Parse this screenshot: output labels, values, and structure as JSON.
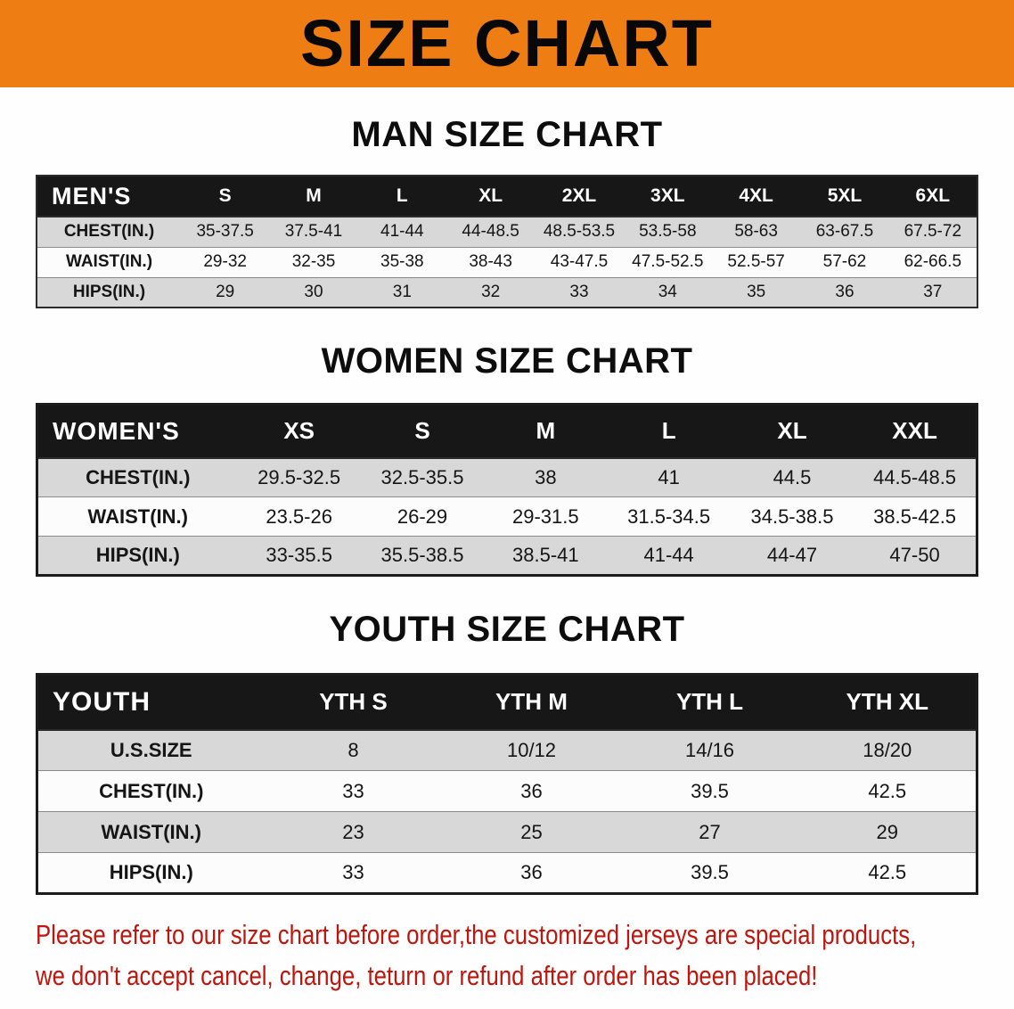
{
  "banner": {
    "title": "SIZE CHART"
  },
  "colors": {
    "banner_orange": "#ee7d13",
    "header_black": "#171717",
    "row_gray": "#d8d8d8",
    "disclaimer_red": "#c0140c"
  },
  "sections": [
    {
      "heading": "MAN SIZE CHART",
      "header_label": "MEN'S",
      "columns": [
        "S",
        "M",
        "L",
        "XL",
        "2XL",
        "3XL",
        "4XL",
        "5XL",
        "6XL"
      ],
      "rows": [
        {
          "label": "CHEST(IN.)",
          "values": [
            "35-37.5",
            "37.5-41",
            "41-44",
            "44-48.5",
            "48.5-53.5",
            "53.5-58",
            "58-63",
            "63-67.5",
            "67.5-72"
          ]
        },
        {
          "label": "WAIST(IN.)",
          "values": [
            "29-32",
            "32-35",
            "35-38",
            "38-43",
            "43-47.5",
            "47.5-52.5",
            "52.5-57",
            "57-62",
            "62-66.5"
          ]
        },
        {
          "label": "HIPS(IN.)",
          "values": [
            "29",
            "30",
            "31",
            "32",
            "33",
            "34",
            "35",
            "36",
            "37"
          ]
        }
      ]
    },
    {
      "heading": "WOMEN SIZE CHART",
      "header_label": "WOMEN'S",
      "columns": [
        "XS",
        "S",
        "M",
        "L",
        "XL",
        "XXL"
      ],
      "rows": [
        {
          "label": "CHEST(IN.)",
          "values": [
            "29.5-32.5",
            "32.5-35.5",
            "38",
            "41",
            "44.5",
            "44.5-48.5"
          ]
        },
        {
          "label": "WAIST(IN.)",
          "values": [
            "23.5-26",
            "26-29",
            "29-31.5",
            "31.5-34.5",
            "34.5-38.5",
            "38.5-42.5"
          ]
        },
        {
          "label": "HIPS(IN.)",
          "values": [
            "33-35.5",
            "35.5-38.5",
            "38.5-41",
            "41-44",
            "44-47",
            "47-50"
          ]
        }
      ]
    },
    {
      "heading": "YOUTH SIZE CHART",
      "header_label": "YOUTH",
      "columns": [
        "YTH S",
        "YTH M",
        "YTH L",
        "YTH XL"
      ],
      "rows": [
        {
          "label": "U.S.SIZE",
          "values": [
            "8",
            "10/12",
            "14/16",
            "18/20"
          ]
        },
        {
          "label": "CHEST(IN.)",
          "values": [
            "33",
            "36",
            "39.5",
            "42.5"
          ]
        },
        {
          "label": "WAIST(IN.)",
          "values": [
            "23",
            "25",
            "27",
            "29"
          ]
        },
        {
          "label": "HIPS(IN.)",
          "values": [
            "33",
            "36",
            "39.5",
            "42.5"
          ]
        }
      ]
    }
  ],
  "footer": {
    "line1": "Please refer to our size chart before order,the customized jerseys are special products,",
    "line2": "we don't accept cancel, change, teturn or refund after order has been placed!"
  }
}
